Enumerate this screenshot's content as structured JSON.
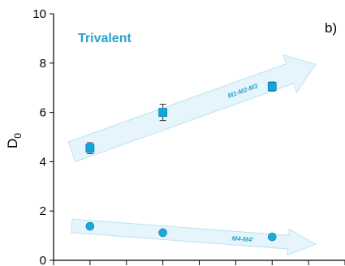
{
  "chart_data": {
    "type": "scatter",
    "panel_label": "b)",
    "title": "Trivalent",
    "ylabel": "D",
    "ylabel_subscript": "0",
    "xlim": [
      0,
      4
    ],
    "ylim": [
      0,
      10
    ],
    "y_ticks": [
      "0",
      "2",
      "4",
      "6",
      "8",
      "10"
    ],
    "x_ticks": [
      0,
      0.5,
      1,
      1.5,
      2,
      2.5,
      3,
      3.5,
      4
    ],
    "grid": false,
    "colors": {
      "square_marker": "#12a6dc",
      "circle_marker": "#1ba9d9",
      "arrow_fill": "#e4f5fb",
      "arrow_stroke": "#b8e2f2",
      "label_text": "#2aa3cc"
    },
    "series": [
      {
        "marker": "square",
        "x": [
          0.5,
          1.5,
          3.0
        ],
        "y": [
          4.55,
          6.0,
          7.05
        ],
        "err": [
          0.22,
          0.33,
          0.18
        ]
      },
      {
        "marker": "circle",
        "x": [
          0.5,
          1.5,
          3.0
        ],
        "y": [
          1.38,
          1.12,
          0.95
        ],
        "err": [
          0,
          0,
          0
        ]
      }
    ],
    "annotations": [
      {
        "text": "M1-M2-M3",
        "from": [
          0.25,
          4.4
        ],
        "to": [
          3.6,
          7.95
        ],
        "width": 0.85
      },
      {
        "text": "M4-M4'",
        "from": [
          0.25,
          1.4
        ],
        "to": [
          3.6,
          0.65
        ],
        "width": 0.55
      }
    ]
  }
}
